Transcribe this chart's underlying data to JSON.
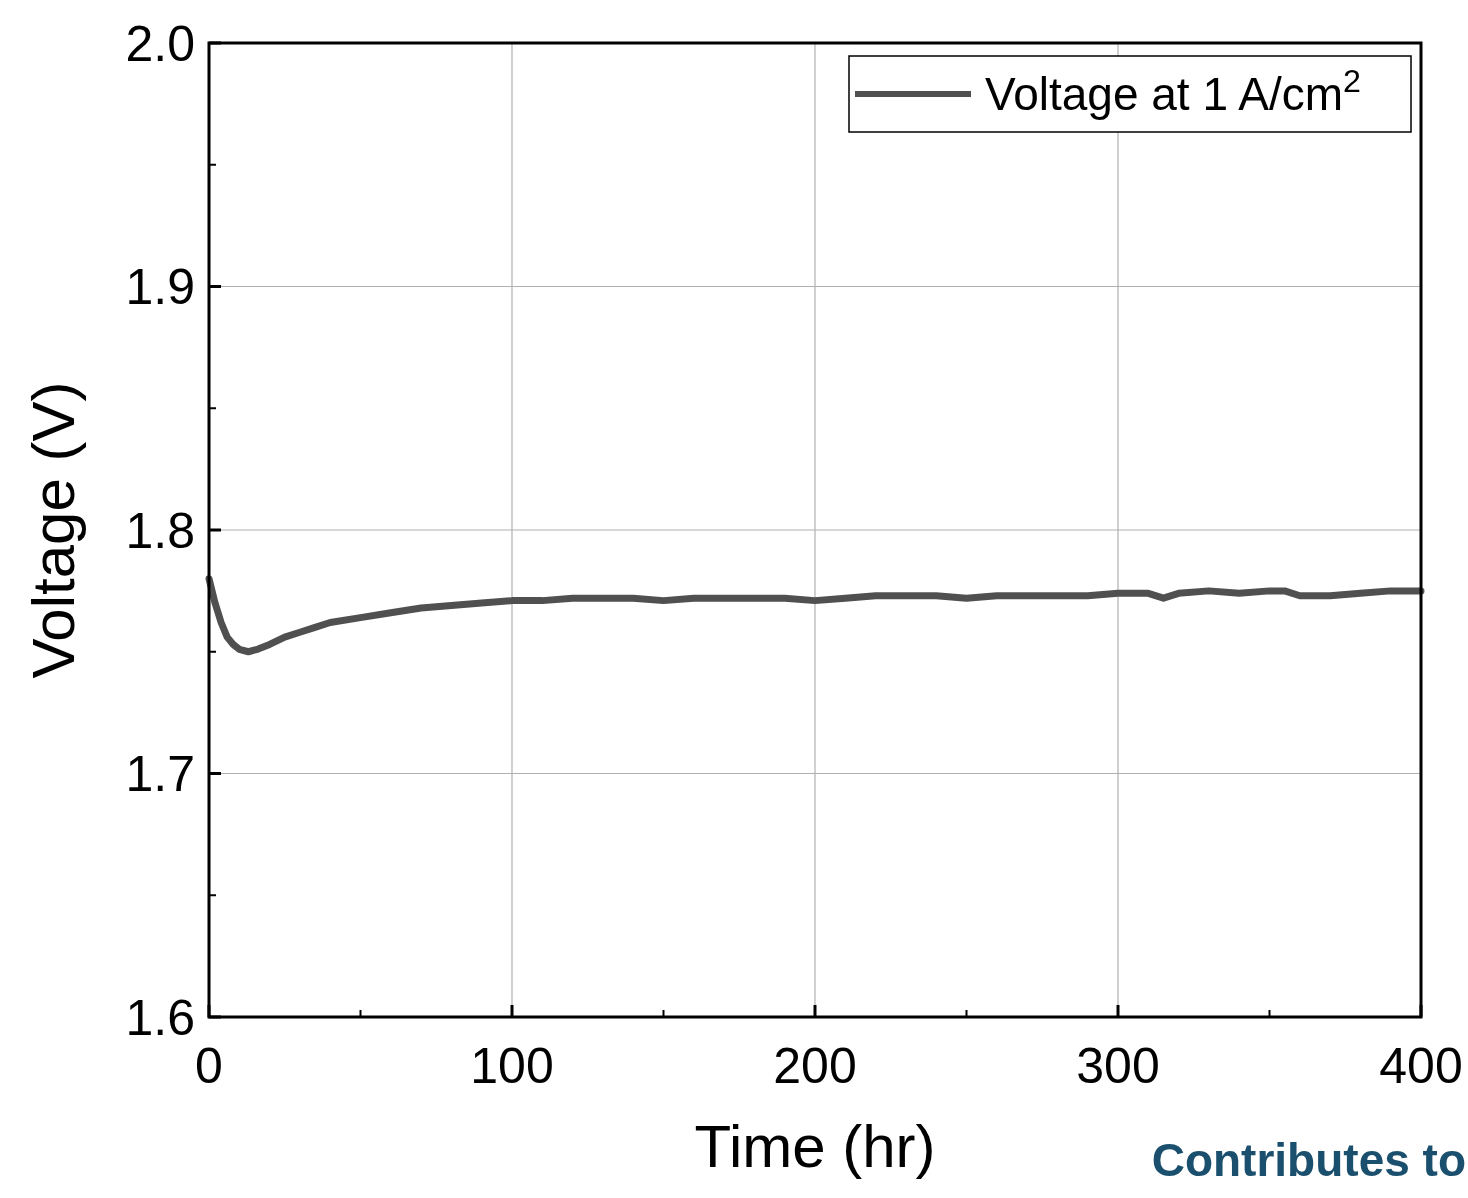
{
  "chart_data": {
    "type": "line",
    "xlabel": "Time (hr)",
    "ylabel": "Voltage (V)",
    "annotations": [
      "Contributes to"
    ],
    "x": [
      0,
      2,
      4,
      6,
      8,
      10,
      13,
      16,
      20,
      25,
      30,
      35,
      40,
      50,
      60,
      70,
      80,
      90,
      100,
      110,
      120,
      130,
      140,
      150,
      160,
      170,
      180,
      190,
      200,
      210,
      220,
      230,
      240,
      250,
      260,
      270,
      280,
      290,
      300,
      310,
      315,
      320,
      330,
      340,
      350,
      355,
      360,
      370,
      380,
      390,
      400
    ],
    "series": [
      {
        "name": "Voltage at 1 A/cm$^{2}$",
        "color": "#505050",
        "values": [
          1.78,
          1.77,
          1.762,
          1.756,
          1.753,
          1.751,
          1.75,
          1.751,
          1.753,
          1.756,
          1.758,
          1.76,
          1.762,
          1.764,
          1.766,
          1.768,
          1.769,
          1.77,
          1.771,
          1.771,
          1.772,
          1.772,
          1.772,
          1.771,
          1.772,
          1.772,
          1.772,
          1.772,
          1.771,
          1.772,
          1.773,
          1.773,
          1.773,
          1.772,
          1.773,
          1.773,
          1.773,
          1.773,
          1.774,
          1.774,
          1.772,
          1.774,
          1.775,
          1.774,
          1.775,
          1.775,
          1.773,
          1.773,
          1.774,
          1.775,
          1.775
        ]
      }
    ],
    "xlim": [
      0,
      400
    ],
    "xticks": [
      0,
      100,
      200,
      300,
      400
    ],
    "ylim": [
      1.6,
      2.0
    ],
    "yticks": [
      1.6,
      1.7,
      1.8,
      1.9,
      {
        "value": 2,
        "label": "2.0"
      }
    ],
    "grid": true,
    "legend": "top right",
    "line_style": "solid",
    "marker": "none"
  }
}
